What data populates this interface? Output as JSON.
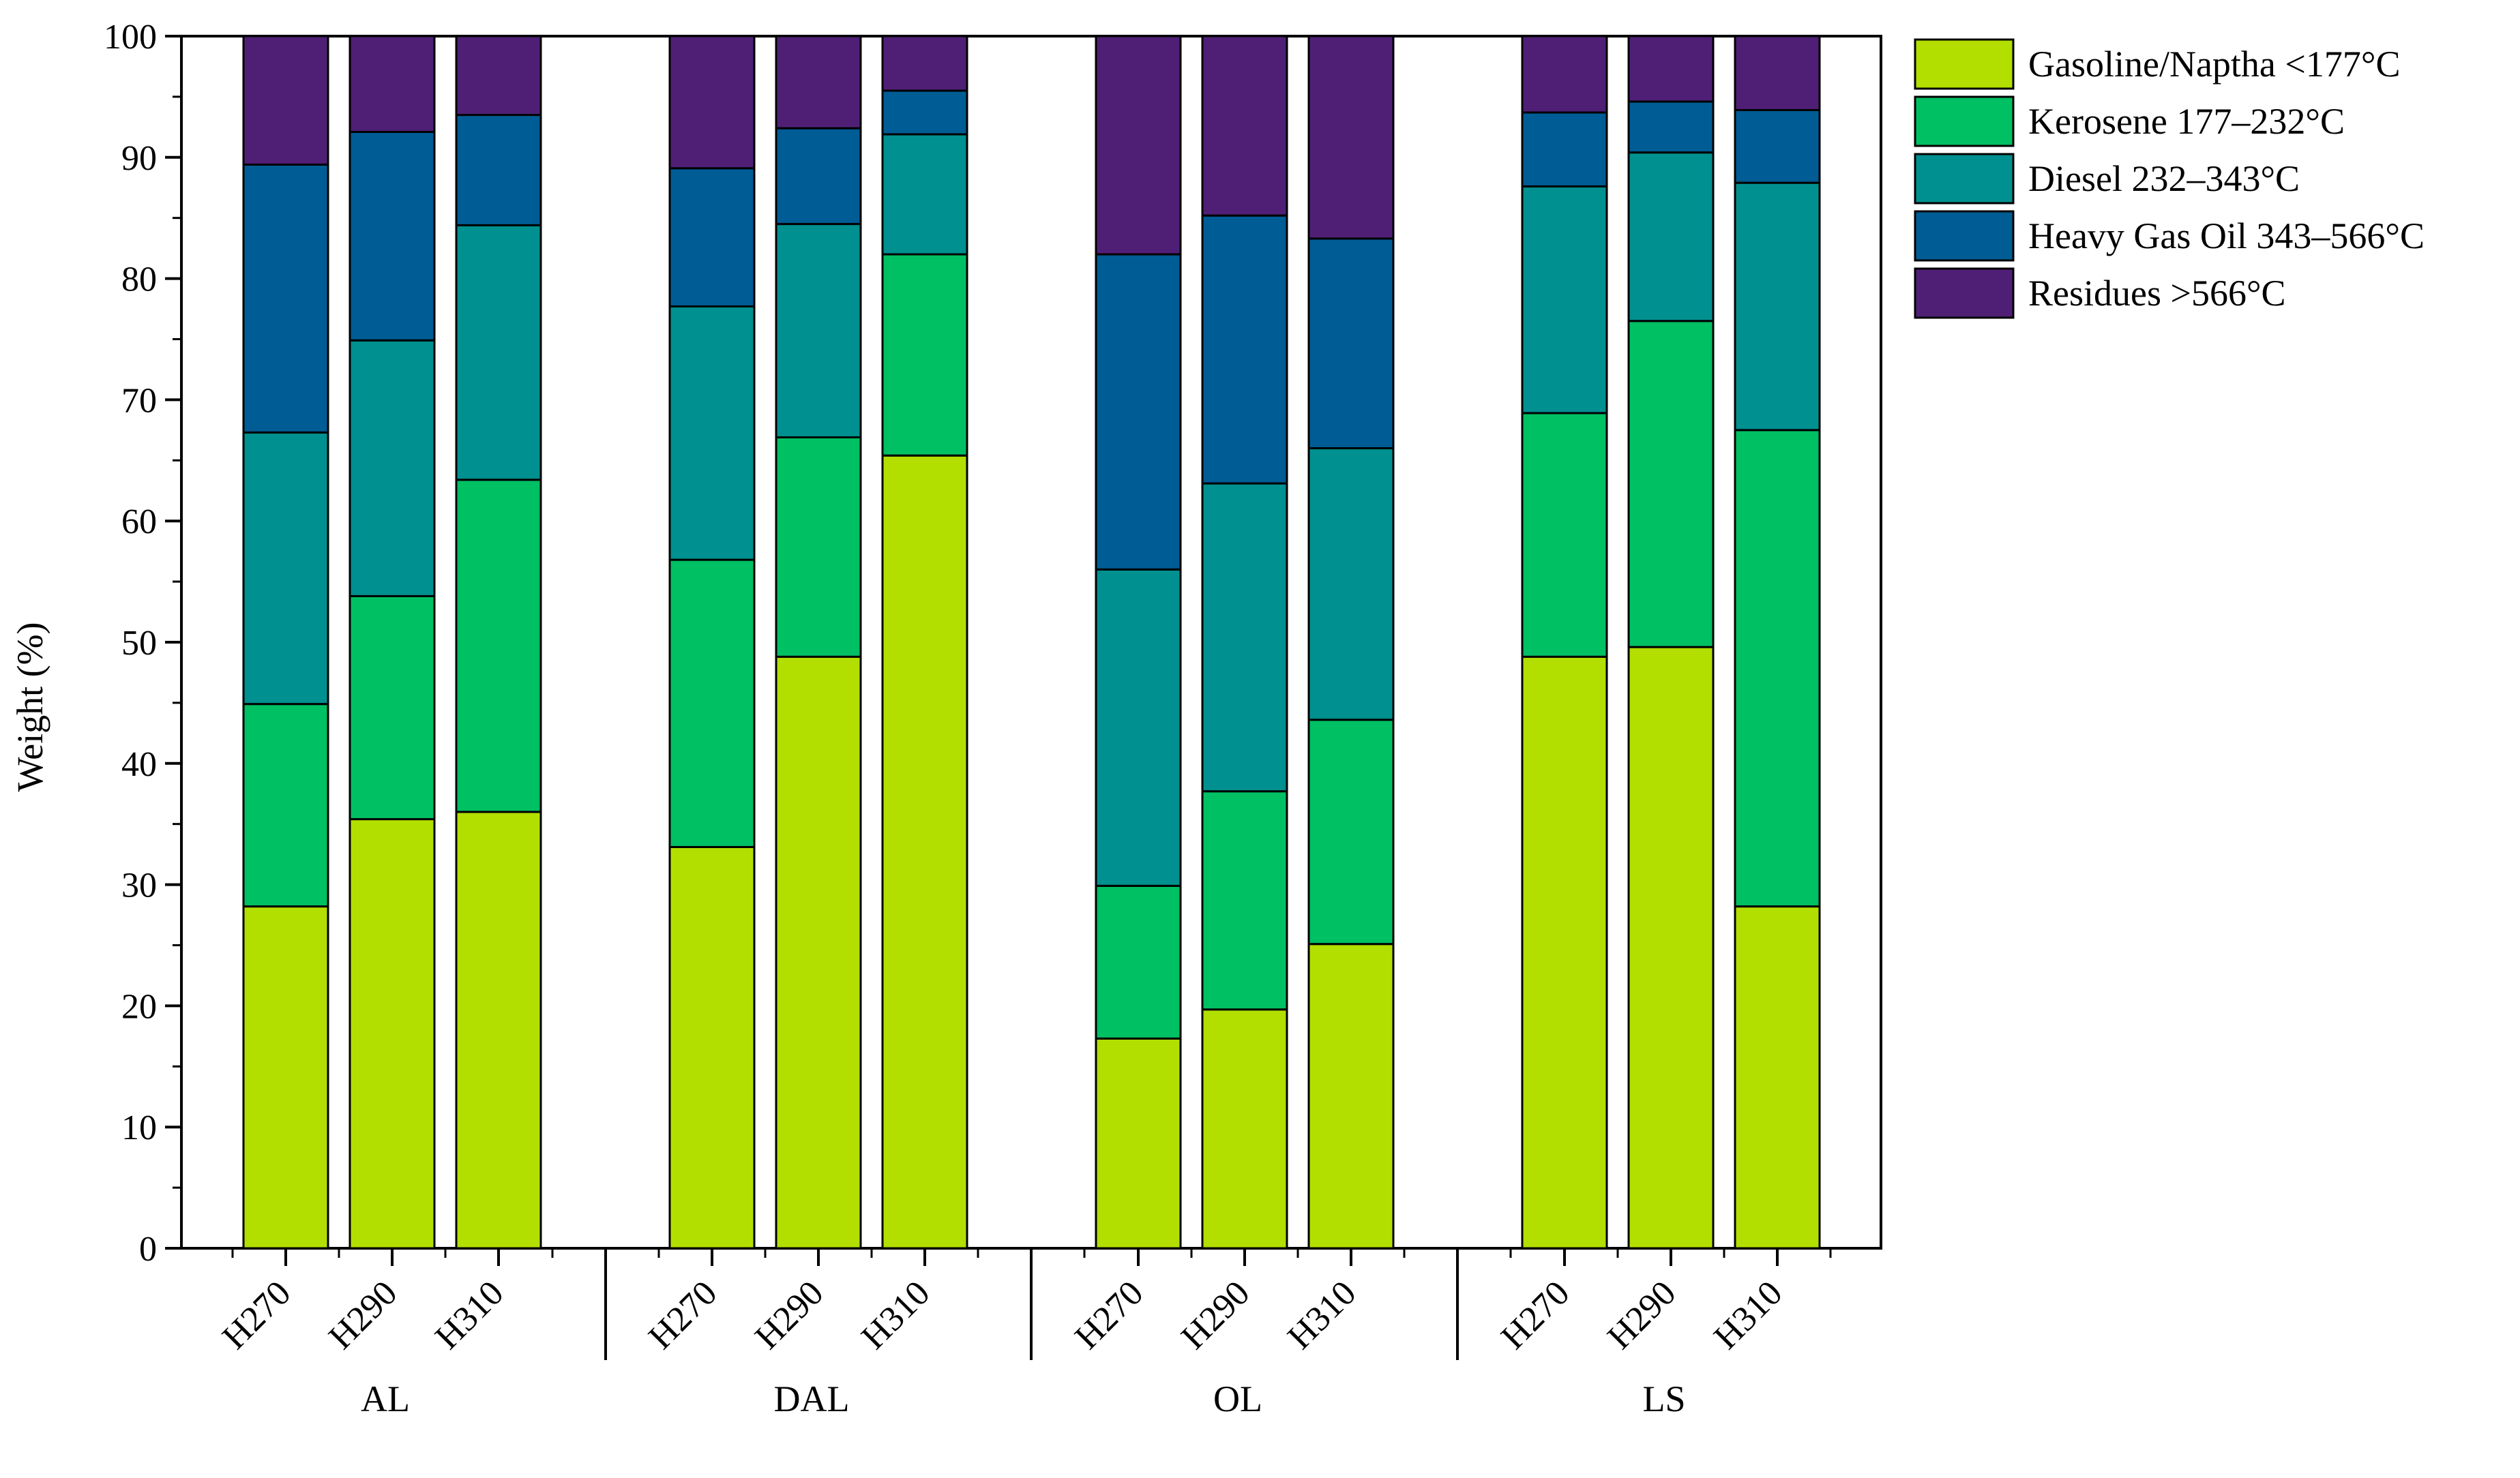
{
  "chart_data": {
    "type": "bar",
    "stacked": true,
    "title": "",
    "xlabel": "",
    "ylabel": "Weight (%)",
    "ylim": [
      0,
      100
    ],
    "yticks": [
      0,
      10,
      20,
      30,
      40,
      50,
      60,
      70,
      80,
      90,
      100
    ],
    "legend_position": "top-right outside",
    "groups": [
      "AL",
      "DAL",
      "OL",
      "LS"
    ],
    "categories": [
      "H270",
      "H290",
      "H310",
      "H270",
      "H290",
      "H310",
      "H270",
      "H290",
      "H310",
      "H270",
      "H290",
      "H310"
    ],
    "series": [
      {
        "name": "Gasoline/Naptha <177°C",
        "color": "#b2df00",
        "values": [
          28.2,
          35.4,
          36.0,
          33.1,
          48.8,
          65.4,
          17.3,
          19.7,
          25.1,
          48.8,
          49.6,
          28.2
        ]
      },
      {
        "name": "Kerosene 177–232°C",
        "color": "#00c064",
        "values": [
          16.7,
          18.4,
          27.4,
          23.7,
          18.1,
          16.6,
          12.6,
          18.0,
          18.5,
          20.1,
          26.9,
          39.3
        ]
      },
      {
        "name": "Diesel 232–343°C",
        "color": "#009090",
        "values": [
          22.4,
          21.1,
          21.0,
          20.9,
          17.6,
          9.9,
          26.1,
          25.4,
          22.4,
          18.7,
          13.9,
          20.4
        ]
      },
      {
        "name": "Heavy Gas Oil 343–566°C",
        "color": "#005c94",
        "values": [
          22.1,
          17.2,
          9.1,
          11.4,
          7.9,
          3.6,
          26.0,
          22.1,
          17.3,
          6.1,
          4.2,
          6.0
        ]
      },
      {
        "name": "Residues >566°C",
        "color": "#4f1f76",
        "values": [
          10.6,
          7.9,
          6.5,
          10.9,
          7.6,
          4.5,
          18.0,
          14.8,
          16.7,
          6.3,
          5.4,
          6.1
        ]
      }
    ]
  }
}
